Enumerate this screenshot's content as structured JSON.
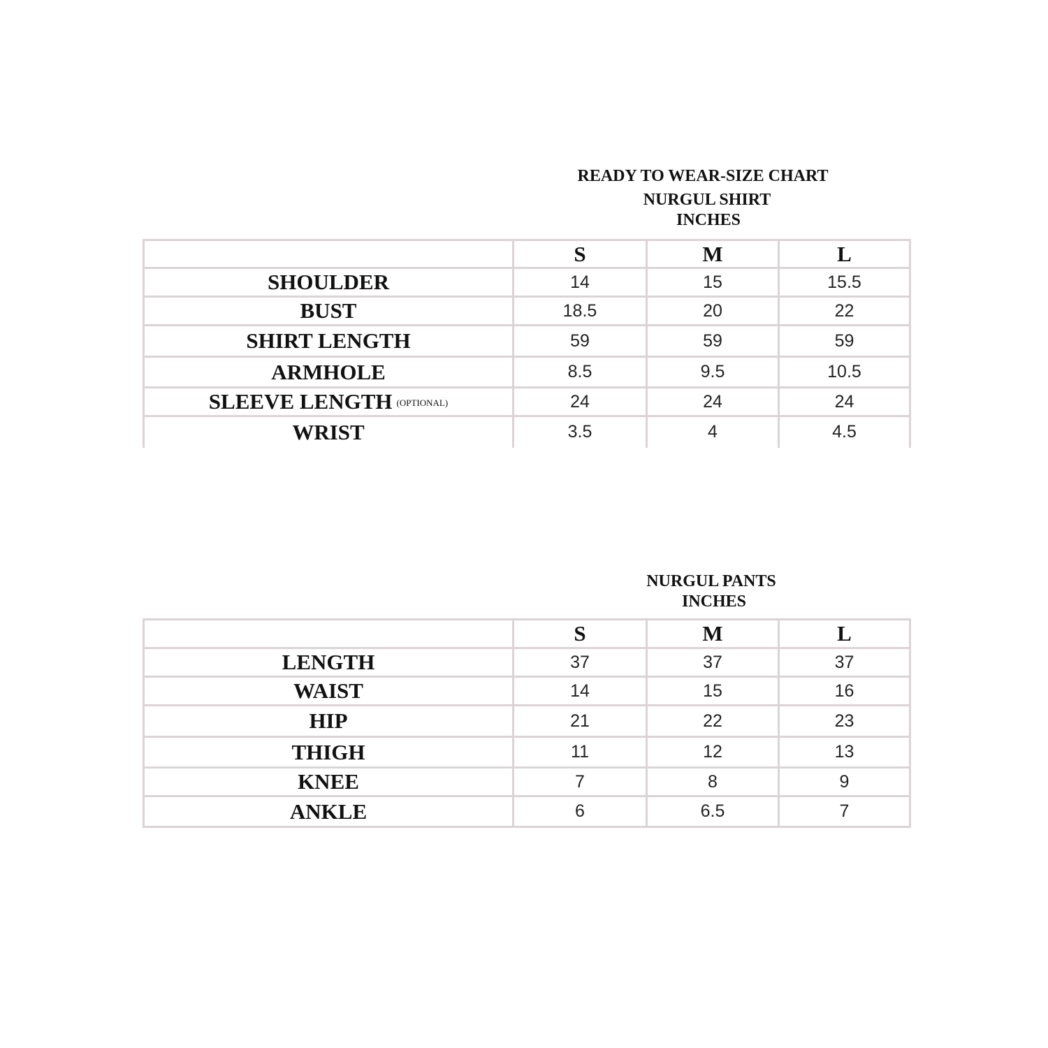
{
  "heading": "READY TO WEAR-SIZE CHART",
  "shirt": {
    "title": "NURGUL SHIRT",
    "unit": "INCHES",
    "sizes": [
      "S",
      "M",
      "L"
    ],
    "rows": [
      {
        "label": "SHOULDER",
        "note": "",
        "values": [
          "14",
          "15",
          "15.5"
        ]
      },
      {
        "label": "BUST",
        "note": "",
        "values": [
          "18.5",
          "20",
          "22"
        ]
      },
      {
        "label": "SHIRT LENGTH",
        "note": "",
        "values": [
          "59",
          "59",
          "59"
        ]
      },
      {
        "label": "ARMHOLE",
        "note": "",
        "values": [
          "8.5",
          "9.5",
          "10.5"
        ]
      },
      {
        "label": "SLEEVE LENGTH",
        "note": "(OPTIONAL)",
        "values": [
          "24",
          "24",
          "24"
        ]
      },
      {
        "label": "WRIST",
        "note": "",
        "values": [
          "3.5",
          "4",
          "4.5"
        ]
      }
    ]
  },
  "pants": {
    "title": "NURGUL PANTS",
    "unit": "INCHES",
    "sizes": [
      "S",
      "M",
      "L"
    ],
    "rows": [
      {
        "label": "LENGTH",
        "values": [
          "37",
          "37",
          "37"
        ]
      },
      {
        "label": "WAIST",
        "values": [
          "14",
          "15",
          "16"
        ]
      },
      {
        "label": "HIP",
        "values": [
          "21",
          "22",
          "23"
        ]
      },
      {
        "label": "THIGH",
        "values": [
          "11",
          "12",
          "13"
        ]
      },
      {
        "label": "KNEE",
        "values": [
          "7",
          "8",
          "9"
        ]
      },
      {
        "label": "ANKLE",
        "values": [
          "6",
          "6.5",
          "7"
        ]
      }
    ]
  },
  "colors": {
    "border": "#dcd3d6",
    "text": "#111111"
  }
}
